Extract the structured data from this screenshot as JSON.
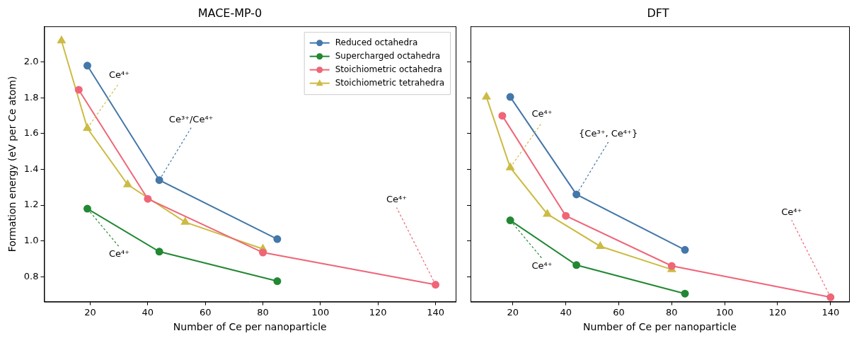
{
  "chart_data": [
    {
      "type": "line",
      "title": "MACE-MP-0",
      "x_label": "Number of Ce per nanoparticle",
      "y_label": "Formation energy (eV per Ce atom)",
      "xlim": [
        4,
        147
      ],
      "ylim": [
        0.66,
        2.2
      ],
      "xticks": [
        20,
        40,
        60,
        80,
        100,
        120,
        140
      ],
      "yticks": [
        0.8,
        {
          "value": 1,
          "label": "1.0"
        },
        1.2,
        1.4,
        1.6,
        1.8,
        {
          "value": 2,
          "label": "2.0"
        }
      ],
      "grid": false,
      "legend": "upper right",
      "series": [
        {
          "name": "Reduced octahedra",
          "color": "#4477AA",
          "marker": "circle",
          "x": [
            19,
            44,
            85
          ],
          "values": [
            1.98,
            1.34,
            1.01
          ]
        },
        {
          "name": "Supercharged octahedra",
          "color": "#228833",
          "marker": "circle",
          "x": [
            19,
            44,
            85
          ],
          "values": [
            1.18,
            0.94,
            0.775
          ]
        },
        {
          "name": "Stoichiometric octahedra",
          "color": "#EE6677",
          "marker": "circle",
          "x": [
            16,
            40,
            80,
            140
          ],
          "values": [
            1.845,
            1.235,
            0.935,
            0.755
          ]
        },
        {
          "name": "Stoichiometric tetrahedra",
          "color": "#CCBB44",
          "marker": "triangle",
          "x": [
            10,
            19,
            33,
            53,
            80
          ],
          "values": [
            2.12,
            1.63,
            1.315,
            1.105,
            0.955
          ]
        }
      ],
      "annotations": [
        {
          "text": "Ce⁴⁺",
          "series": "Stoichiometric tetrahedra",
          "x": 19
        },
        {
          "text": "Ce³⁺/Ce⁴⁺",
          "series": "Reduced octahedra",
          "x": 44
        },
        {
          "text": "Ce⁴⁺",
          "series": "Stoichiometric octahedra",
          "x": 140
        },
        {
          "text": "Ce⁴⁺",
          "series": "Supercharged octahedra",
          "x": 19
        }
      ]
    },
    {
      "type": "line",
      "title": "DFT",
      "x_label": "Number of Ce per nanoparticle",
      "xlim": [
        4,
        147
      ],
      "ylim": [
        0.66,
        2.2
      ],
      "xticks": [
        20,
        40,
        60,
        80,
        100,
        120,
        140
      ],
      "yticks": [
        0.8,
        {
          "value": 1,
          "label": "1.0"
        },
        1.2,
        1.4,
        1.6,
        1.8,
        {
          "value": 2,
          "label": "2.0"
        }
      ],
      "grid": false,
      "tick_labels": "x",
      "series": [
        {
          "name": "Reduced octahedra",
          "color": "#4477AA",
          "marker": "circle",
          "x": [
            19,
            44,
            85
          ],
          "values": [
            1.805,
            1.26,
            0.95
          ]
        },
        {
          "name": "Supercharged octahedra",
          "color": "#228833",
          "marker": "circle",
          "x": [
            19,
            44,
            85
          ],
          "values": [
            1.115,
            0.865,
            0.705
          ]
        },
        {
          "name": "Stoichiometric octahedra",
          "color": "#EE6677",
          "marker": "circle",
          "x": [
            16,
            40,
            80,
            140
          ],
          "values": [
            1.7,
            1.14,
            0.86,
            0.685
          ]
        },
        {
          "name": "Stoichiometric tetrahedra",
          "color": "#CCBB44",
          "marker": "triangle",
          "x": [
            10,
            19,
            33,
            53,
            80
          ],
          "values": [
            1.805,
            1.41,
            1.15,
            0.97,
            0.84
          ]
        }
      ],
      "annotations": [
        {
          "text": "Ce⁴⁺",
          "series": "Stoichiometric tetrahedra",
          "x": 19
        },
        {
          "text": "{Ce³⁺, Ce⁴⁺}",
          "series": "Reduced octahedra",
          "x": 44
        },
        {
          "text": "Ce⁴⁺",
          "series": "Stoichiometric octahedra",
          "x": 140
        },
        {
          "text": "Ce⁴⁺",
          "series": "Supercharged octahedra",
          "x": 19
        }
      ]
    }
  ]
}
